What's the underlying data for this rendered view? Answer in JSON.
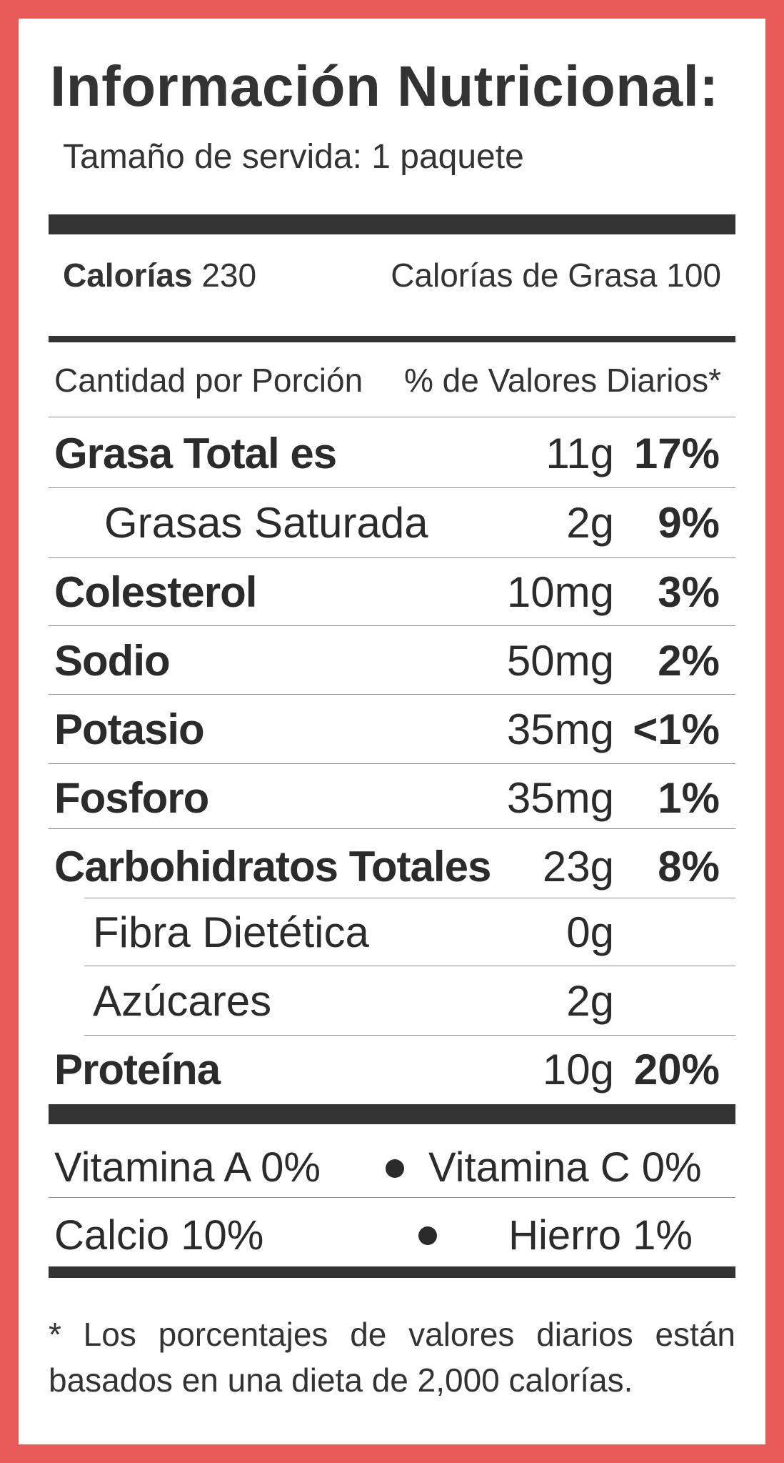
{
  "title": "Información Nutricional:",
  "serving": "Tamaño de servida: 1  paquete",
  "calories": {
    "label": "Calorías",
    "value": "230",
    "fat_text": "Calorías de Grasa 100"
  },
  "header": {
    "left": "Cantidad por Porción",
    "right": "% de Valores Diarios*"
  },
  "rows": [
    {
      "label": "Grasa Total es",
      "amount": "11g",
      "pct": "17%"
    },
    {
      "label": "Grasas Saturada",
      "amount": "2g",
      "pct": "9%"
    },
    {
      "label": "Colesterol",
      "amount": "10mg",
      "pct": "3%"
    },
    {
      "label": "Sodio",
      "amount": "50mg",
      "pct": "2%"
    },
    {
      "label": "Potasio",
      "amount": "35mg",
      "pct": "<1%"
    },
    {
      "label": "Fosforo",
      "amount": "35mg",
      "pct": "1%"
    },
    {
      "label": "Carbohidratos Totales",
      "amount": "23g",
      "pct": "8%"
    },
    {
      "label": "Fibra Dietética",
      "amount": "0g",
      "pct": ""
    },
    {
      "label": "Azúcares",
      "amount": "2g",
      "pct": ""
    },
    {
      "label": "Proteína",
      "amount": "10g",
      "pct": "20%"
    }
  ],
  "vitamins": {
    "row1_left": "Vitamina A 0%",
    "row1_right": "Vitamina C 0%",
    "row2_left": "Calcio 10%",
    "row2_right": "Hierro 1%"
  },
  "footnote": {
    "line1": "* Los porcentajes de valores diarios están",
    "line2": "basados en una dieta de 2,000 calorías."
  },
  "colors": {
    "border": "#E85A58",
    "text": "#2b2b2b",
    "rule": "#333333"
  }
}
